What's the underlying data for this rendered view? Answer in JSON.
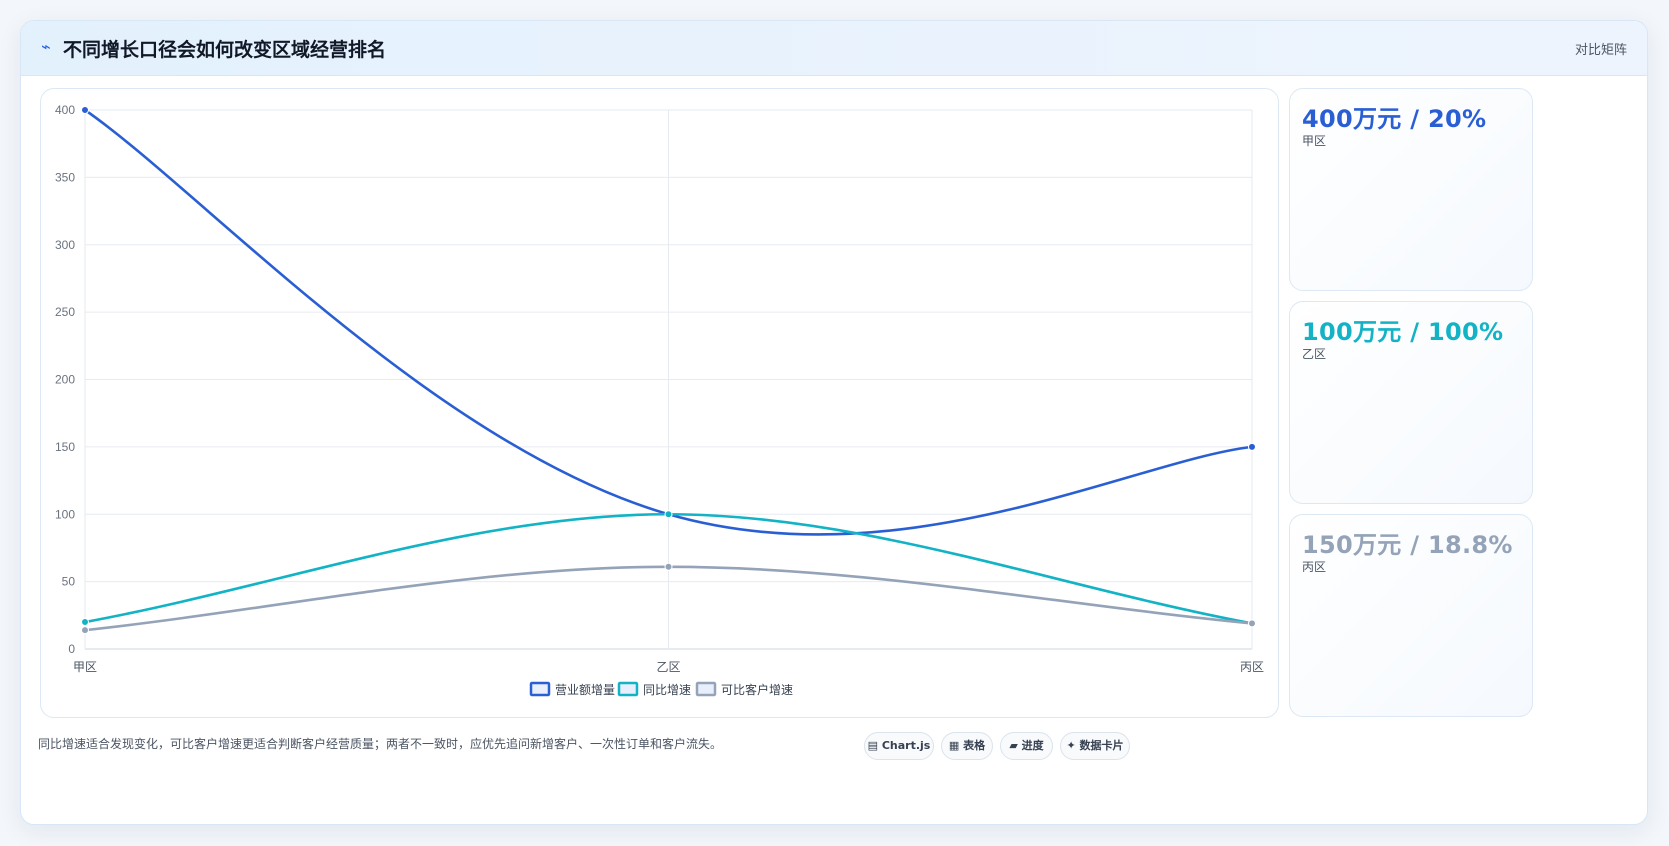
{
  "header": {
    "title": "不同增长口径会如何改变区域经营排名",
    "tag": "对比矩阵",
    "glyph": "⌁"
  },
  "colors": {
    "primary": "#2a5fd4",
    "teal": "#13b3c6",
    "gray": "#94a3b8"
  },
  "chart_data": {
    "type": "line",
    "x": [
      "甲区",
      "乙区",
      "丙区"
    ],
    "ylim": [
      0,
      400
    ],
    "yticks": [
      0,
      50,
      100,
      150,
      200,
      250,
      300,
      350,
      400
    ],
    "grid": true,
    "legend_position": "bottom",
    "series": [
      {
        "name": "营业额增量",
        "values": [
          400,
          100,
          150
        ],
        "color": "#2a5fd4"
      },
      {
        "name": "同比增速",
        "values": [
          20,
          100,
          19
        ],
        "color": "#13b3c6"
      },
      {
        "name": "可比客户增速",
        "values": [
          14,
          61,
          19
        ],
        "color": "#94a3b8"
      }
    ]
  },
  "kpis": [
    {
      "value": "400万元 / 20%",
      "label": "甲区",
      "color": "#2a5fd4"
    },
    {
      "value": "100万元 / 100%",
      "label": "乙区",
      "color": "#13b3c6"
    },
    {
      "value": "150万元 / 18.8%",
      "label": "丙区",
      "color": "#94a3b8"
    }
  ],
  "footer": {
    "note": "同比增速适合发现变化，可比客户增速更适合判断客户经营质量；两者不一致时，应优先追问新增客户、一次性订单和客户流失。",
    "chips": [
      "▤ Chart.js",
      "▦ 表格",
      "▰ 进度",
      "✦ 数据卡片"
    ]
  }
}
